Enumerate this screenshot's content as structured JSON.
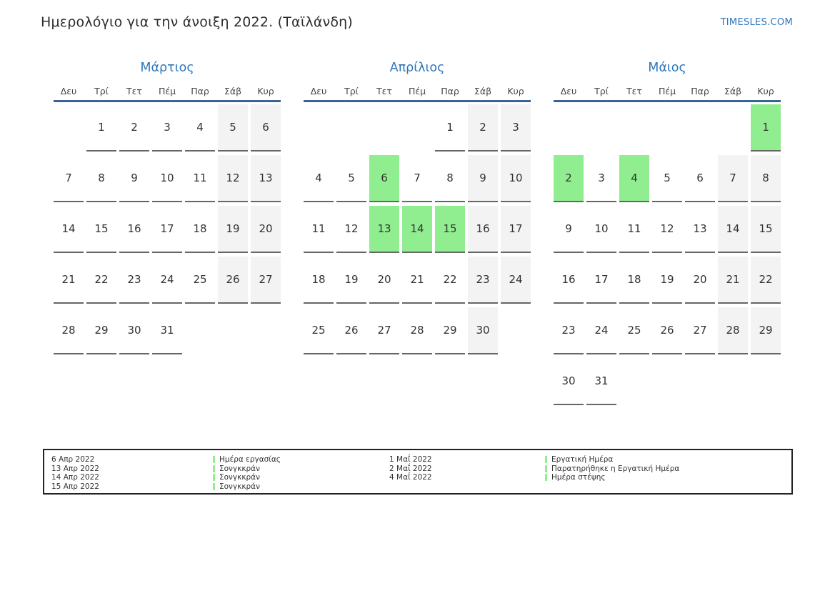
{
  "page": {
    "title": "Ημερολόγιο για την άνοιξη 2022. (Ταϊλάνδη)",
    "brand": "TIMESLES.COM"
  },
  "colors": {
    "accent_blue": "#2d76b9",
    "header_line_blue": "#3a6494",
    "holiday_green": "#90ee90",
    "weekend_gray": "#f3f3f3",
    "underline_gray": "#666666",
    "text": "#333333"
  },
  "calendar": {
    "day_headers": [
      "Δευ",
      "Τρί",
      "Τετ",
      "Πέμ",
      "Παρ",
      "Σάβ",
      "Κυρ"
    ],
    "months": [
      {
        "name": "Μάρτιος",
        "weeks": [
          [
            null,
            {
              "d": "1",
              "t": "n"
            },
            {
              "d": "2",
              "t": "n"
            },
            {
              "d": "3",
              "t": "n"
            },
            {
              "d": "4",
              "t": "n"
            },
            {
              "d": "5",
              "t": "w"
            },
            {
              "d": "6",
              "t": "w"
            }
          ],
          [
            {
              "d": "7",
              "t": "n"
            },
            {
              "d": "8",
              "t": "n"
            },
            {
              "d": "9",
              "t": "n"
            },
            {
              "d": "10",
              "t": "n"
            },
            {
              "d": "11",
              "t": "n"
            },
            {
              "d": "12",
              "t": "w"
            },
            {
              "d": "13",
              "t": "w"
            }
          ],
          [
            {
              "d": "14",
              "t": "n"
            },
            {
              "d": "15",
              "t": "n"
            },
            {
              "d": "16",
              "t": "n"
            },
            {
              "d": "17",
              "t": "n"
            },
            {
              "d": "18",
              "t": "n"
            },
            {
              "d": "19",
              "t": "w"
            },
            {
              "d": "20",
              "t": "w"
            }
          ],
          [
            {
              "d": "21",
              "t": "n"
            },
            {
              "d": "22",
              "t": "n"
            },
            {
              "d": "23",
              "t": "n"
            },
            {
              "d": "24",
              "t": "n"
            },
            {
              "d": "25",
              "t": "n"
            },
            {
              "d": "26",
              "t": "w"
            },
            {
              "d": "27",
              "t": "w"
            }
          ],
          [
            {
              "d": "28",
              "t": "n"
            },
            {
              "d": "29",
              "t": "n"
            },
            {
              "d": "30",
              "t": "n"
            },
            {
              "d": "31",
              "t": "n"
            },
            null,
            null,
            null
          ]
        ]
      },
      {
        "name": "Απρίλιος",
        "weeks": [
          [
            null,
            null,
            null,
            null,
            {
              "d": "1",
              "t": "n"
            },
            {
              "d": "2",
              "t": "w"
            },
            {
              "d": "3",
              "t": "w"
            }
          ],
          [
            {
              "d": "4",
              "t": "n"
            },
            {
              "d": "5",
              "t": "n"
            },
            {
              "d": "6",
              "t": "h"
            },
            {
              "d": "7",
              "t": "n"
            },
            {
              "d": "8",
              "t": "n"
            },
            {
              "d": "9",
              "t": "w"
            },
            {
              "d": "10",
              "t": "w"
            }
          ],
          [
            {
              "d": "11",
              "t": "n"
            },
            {
              "d": "12",
              "t": "n"
            },
            {
              "d": "13",
              "t": "h"
            },
            {
              "d": "14",
              "t": "h"
            },
            {
              "d": "15",
              "t": "h"
            },
            {
              "d": "16",
              "t": "w"
            },
            {
              "d": "17",
              "t": "w"
            }
          ],
          [
            {
              "d": "18",
              "t": "n"
            },
            {
              "d": "19",
              "t": "n"
            },
            {
              "d": "20",
              "t": "n"
            },
            {
              "d": "21",
              "t": "n"
            },
            {
              "d": "22",
              "t": "n"
            },
            {
              "d": "23",
              "t": "w"
            },
            {
              "d": "24",
              "t": "w"
            }
          ],
          [
            {
              "d": "25",
              "t": "n"
            },
            {
              "d": "26",
              "t": "n"
            },
            {
              "d": "27",
              "t": "n"
            },
            {
              "d": "28",
              "t": "n"
            },
            {
              "d": "29",
              "t": "n"
            },
            {
              "d": "30",
              "t": "w"
            },
            null
          ]
        ]
      },
      {
        "name": "Μάιος",
        "weeks": [
          [
            null,
            null,
            null,
            null,
            null,
            null,
            {
              "d": "1",
              "t": "h"
            }
          ],
          [
            {
              "d": "2",
              "t": "h"
            },
            {
              "d": "3",
              "t": "n"
            },
            {
              "d": "4",
              "t": "h"
            },
            {
              "d": "5",
              "t": "n"
            },
            {
              "d": "6",
              "t": "n"
            },
            {
              "d": "7",
              "t": "w"
            },
            {
              "d": "8",
              "t": "w"
            }
          ],
          [
            {
              "d": "9",
              "t": "n"
            },
            {
              "d": "10",
              "t": "n"
            },
            {
              "d": "11",
              "t": "n"
            },
            {
              "d": "12",
              "t": "n"
            },
            {
              "d": "13",
              "t": "n"
            },
            {
              "d": "14",
              "t": "w"
            },
            {
              "d": "15",
              "t": "w"
            }
          ],
          [
            {
              "d": "16",
              "t": "n"
            },
            {
              "d": "17",
              "t": "n"
            },
            {
              "d": "18",
              "t": "n"
            },
            {
              "d": "19",
              "t": "n"
            },
            {
              "d": "20",
              "t": "n"
            },
            {
              "d": "21",
              "t": "w"
            },
            {
              "d": "22",
              "t": "w"
            }
          ],
          [
            {
              "d": "23",
              "t": "n"
            },
            {
              "d": "24",
              "t": "n"
            },
            {
              "d": "25",
              "t": "n"
            },
            {
              "d": "26",
              "t": "n"
            },
            {
              "d": "27",
              "t": "n"
            },
            {
              "d": "28",
              "t": "w"
            },
            {
              "d": "29",
              "t": "w"
            }
          ],
          [
            {
              "d": "30",
              "t": "n"
            },
            {
              "d": "31",
              "t": "n"
            },
            null,
            null,
            null,
            null,
            null
          ]
        ]
      }
    ]
  },
  "legend": {
    "rows": [
      {
        "date_left": "6 Απρ 2022",
        "label_left": "Ημέρα εργασίας",
        "date_right": "1 Μαΐ 2022",
        "label_right": "Εργατική Ημέρα"
      },
      {
        "date_left": "13 Απρ 2022",
        "label_left": "Σονγκκράν",
        "date_right": "2 Μαΐ 2022",
        "label_right": "Παρατηρήθηκε η Εργατική Ημέρα"
      },
      {
        "date_left": "14 Απρ 2022",
        "label_left": "Σονγκκράν",
        "date_right": "4 Μαΐ 2022",
        "label_right": "Ημέρα στέψης"
      },
      {
        "date_left": "15 Απρ 2022",
        "label_left": "Σονγκκράν",
        "date_right": "",
        "label_right": ""
      }
    ]
  }
}
